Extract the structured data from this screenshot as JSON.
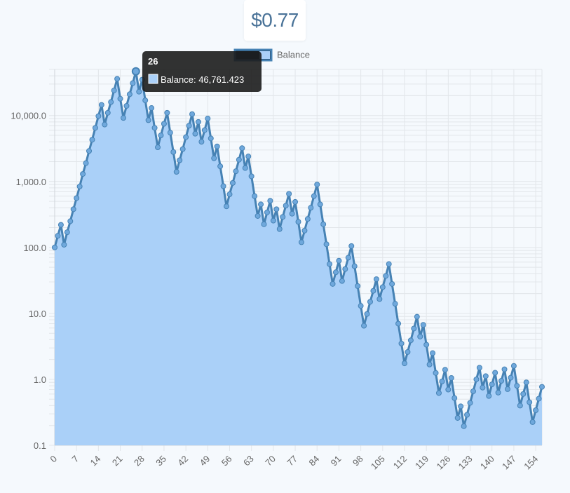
{
  "header": {
    "balance_display": "$0.77"
  },
  "colors": {
    "fill": "#aad0f8",
    "line": "#4682b4",
    "point": "#6fa8dc",
    "grid": "#e2e6ea",
    "tooltip_bg": "#1c1c1c"
  },
  "tooltip": {
    "title": "26",
    "label": "Balance: 46,761.423"
  },
  "chart_data": {
    "type": "area",
    "legend": {
      "labels": [
        "Balance"
      ],
      "position": "top"
    },
    "x_tick_labels": [
      "0",
      "7",
      "14",
      "21",
      "28",
      "35",
      "42",
      "49",
      "56",
      "63",
      "70",
      "77",
      "84",
      "91",
      "98",
      "105",
      "112",
      "119",
      "126",
      "133",
      "140",
      "147",
      "154"
    ],
    "y_scale": "log",
    "ylim": [
      0.1,
      50000
    ],
    "y_tick_labels": [
      "10,000.0",
      "1,000.0",
      "100.0",
      "10.0",
      "1.0",
      "0.1"
    ],
    "y_tick_values": [
      10000,
      1000,
      100,
      10,
      1,
      0.1
    ],
    "grid": true,
    "series": [
      {
        "name": "Balance",
        "x_start": 0,
        "values": [
          100,
          150,
          220,
          110,
          170,
          250,
          380,
          560,
          840,
          1300,
          1900,
          2900,
          4300,
          6500,
          9800,
          14500,
          7300,
          11000,
          16000,
          24000,
          36000,
          18000,
          9200,
          14000,
          21000,
          31000,
          46761.423,
          23000,
          35000,
          17000,
          8500,
          13000,
          6500,
          3300,
          5000,
          7500,
          11000,
          5500,
          2800,
          1400,
          2100,
          3100,
          4700,
          7000,
          10500,
          5300,
          8000,
          4000,
          6000,
          9000,
          4500,
          2250,
          3400,
          1700,
          850,
          420,
          640,
          950,
          1430,
          2140,
          3200,
          1600,
          2400,
          1200,
          600,
          300,
          450,
          225,
          340,
          510,
          255,
          380,
          190,
          290,
          430,
          650,
          325,
          490,
          245,
          120,
          180,
          270,
          400,
          600,
          900,
          450,
          225,
          112,
          56,
          28,
          42,
          63,
          31,
          47,
          70,
          105,
          52,
          26,
          13,
          6.5,
          9.8,
          15,
          22,
          33,
          16.5,
          25,
          37,
          56,
          28,
          14,
          7,
          3.5,
          1.75,
          2.6,
          3.9,
          5.9,
          8.9,
          4.45,
          6.7,
          3.35,
          1.68,
          2.5,
          1.25,
          0.62,
          0.93,
          1.4,
          0.7,
          1.05,
          0.52,
          0.26,
          0.39,
          0.195,
          0.29,
          0.44,
          0.66,
          1.0,
          1.5,
          0.75,
          1.12,
          0.56,
          0.84,
          1.26,
          0.63,
          0.95,
          1.42,
          0.71,
          1.06,
          1.6,
          0.8,
          0.4,
          0.6,
          0.9,
          0.45,
          0.225,
          0.34,
          0.51,
          0.77
        ]
      }
    ]
  }
}
